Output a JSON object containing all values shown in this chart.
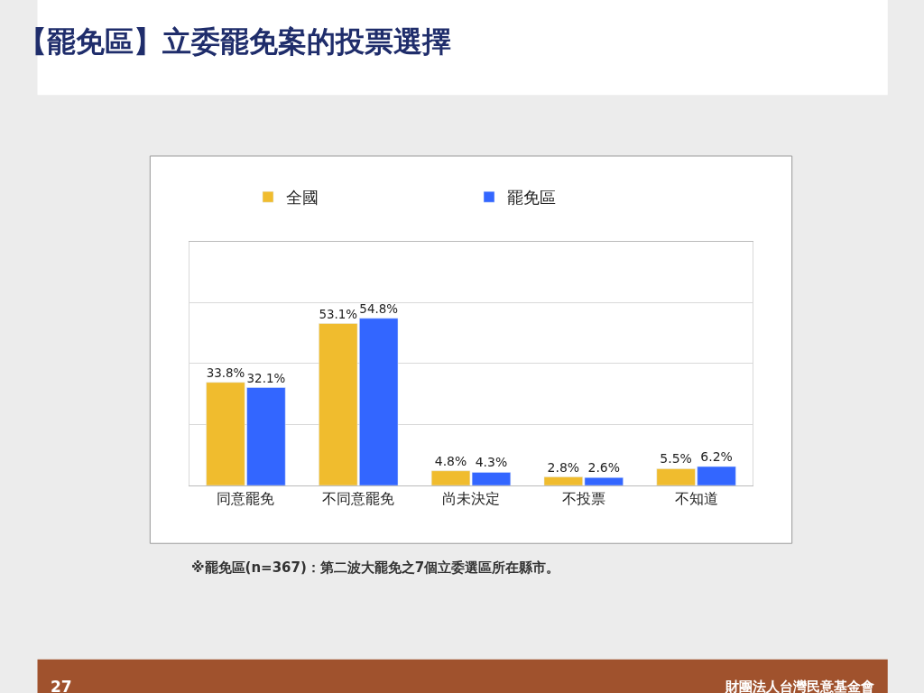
{
  "chart_data": {
    "type": "bar",
    "title": "【罷免區】立委罷免案的投票選擇",
    "categories": [
      "同意罷免",
      "不同意罷免",
      "尚未決定",
      "不投票",
      "不知道"
    ],
    "series": [
      {
        "name": "全國",
        "color": "#f0bc2e",
        "values": [
          33.8,
          53.1,
          4.8,
          2.8,
          5.5
        ],
        "value_labels": [
          "33.8%",
          "53.1%",
          "4.8%",
          "2.8%",
          "5.5%"
        ]
      },
      {
        "name": "罷免區",
        "color": "#3366ff",
        "values": [
          32.1,
          54.8,
          4.3,
          2.6,
          6.2
        ],
        "value_labels": [
          "32.1%",
          "54.8%",
          "4.3%",
          "2.6%",
          "6.2%"
        ]
      }
    ],
    "ylim": [
      0,
      80
    ],
    "yticks": [
      {
        "value": 0,
        "label": null
      },
      {
        "value": 20,
        "label": null
      },
      {
        "value": 40,
        "label": null
      },
      {
        "value": 60,
        "label": null
      }
    ],
    "tick_labels": "x",
    "grid": "y",
    "legend": "top",
    "annotations": [
      "※罷免區(n=367)：第二波大罷免之7個立委選區所在縣市。",
      "27",
      "財團法人台灣民意基金會"
    ]
  }
}
